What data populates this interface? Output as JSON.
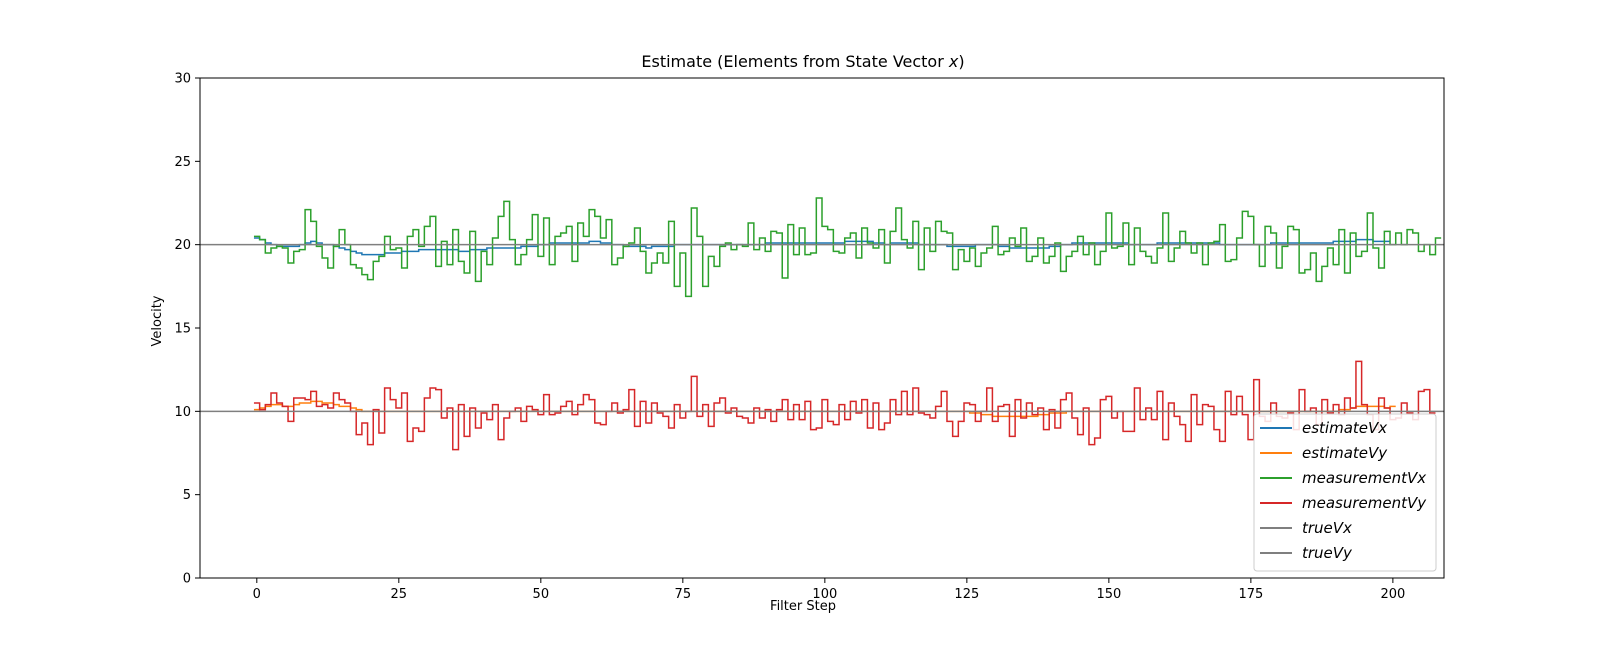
{
  "chart_data": {
    "type": "line",
    "title": "Estimate (Elements from State Vector ",
    "title_var": "x",
    "title_end": ")",
    "xlabel": "Filter Step",
    "ylabel": "Velocity",
    "xlim": [
      -10,
      209
    ],
    "ylim": [
      0,
      30
    ],
    "xticks": [
      0,
      25,
      50,
      75,
      100,
      125,
      150,
      175,
      200
    ],
    "yticks": [
      0,
      5,
      10,
      15,
      20,
      25,
      30
    ],
    "grid": false,
    "legend_position": "lower-right",
    "series": [
      {
        "name": "estimateVx",
        "color": "#1f77b4",
        "style": "step",
        "values": [
          20.4,
          20.3,
          20.1,
          20.0,
          19.9,
          19.9,
          19.9,
          19.9,
          20.0,
          20.1,
          20.2,
          20.1,
          20.0,
          20.0,
          19.9,
          19.8,
          19.7,
          19.6,
          19.5,
          19.4,
          19.4,
          19.4,
          19.4,
          19.5,
          19.5,
          19.5,
          19.6,
          19.6,
          19.6,
          19.7,
          19.7,
          19.7,
          19.7,
          19.7,
          19.7,
          19.7,
          19.6,
          19.6,
          19.7,
          19.7,
          19.7,
          19.8,
          19.8,
          19.8,
          19.8,
          19.8,
          19.8,
          19.9,
          19.9,
          19.9,
          20.0,
          20.0,
          20.1,
          20.1,
          20.1,
          20.1,
          20.1,
          20.1,
          20.1,
          20.2,
          20.2,
          20.1,
          20.1,
          20.0,
          20.0,
          19.9,
          19.9,
          19.9,
          19.9,
          19.8,
          19.9,
          19.9,
          19.9,
          19.9,
          20.0,
          20.0,
          20.0,
          20.0,
          20.0,
          20.0,
          20.0,
          20.0,
          20.0,
          20.0,
          20.0,
          20.0,
          20.0,
          20.0,
          20.0,
          20.0,
          20.1,
          20.1,
          20.1,
          20.1,
          20.1,
          20.1,
          20.1,
          20.1,
          20.1,
          20.1,
          20.1,
          20.1,
          20.1,
          20.1,
          20.2,
          20.2,
          20.2,
          20.2,
          20.2,
          20.1,
          20.1,
          20.0,
          20.1,
          20.1,
          20.1,
          20.1,
          20.1,
          20.0,
          20.0,
          20.0,
          20.0,
          20.0,
          19.9,
          19.9,
          19.9,
          19.9,
          19.9,
          20.0,
          20.0,
          20.0,
          20.0,
          19.9,
          19.9,
          19.8,
          19.8,
          19.8,
          19.8,
          19.8,
          19.8,
          19.8,
          19.9,
          19.9,
          20.0,
          20.0,
          20.1,
          20.1,
          20.1,
          20.1,
          20.1,
          20.1,
          20.1,
          20.1,
          20.1,
          20.1,
          20.0,
          20.0,
          20.0,
          20.0,
          20.0,
          20.1,
          20.1,
          20.1,
          20.1,
          20.1,
          20.1,
          20.1,
          20.1,
          20.1,
          20.1,
          20.1,
          20.0,
          20.0,
          20.0,
          20.0,
          20.0,
          20.0,
          20.0,
          20.0,
          20.0,
          20.1,
          20.1,
          20.1,
          20.1,
          20.1,
          20.1,
          20.1,
          20.1,
          20.1,
          20.1,
          20.1,
          20.2,
          20.2,
          20.2,
          20.2,
          20.3,
          20.3,
          20.3,
          20.2,
          20.2,
          20.2
        ]
      },
      {
        "name": "estimateVy",
        "color": "#ff7f0e",
        "style": "step",
        "values": [
          10.1,
          10.2,
          10.3,
          10.4,
          10.4,
          10.3,
          10.3,
          10.4,
          10.5,
          10.5,
          10.6,
          10.6,
          10.5,
          10.5,
          10.4,
          10.3,
          10.3,
          10.2,
          10.1,
          10.0,
          10.0,
          10.0,
          10.0,
          10.0,
          10.0,
          10.0,
          10.0,
          10.0,
          10.0,
          10.0,
          10.0,
          10.0,
          10.0,
          10.0,
          10.0,
          10.0,
          10.0,
          10.0,
          10.0,
          10.0,
          10.0,
          10.0,
          10.0,
          10.0,
          10.0,
          10.0,
          10.0,
          10.0,
          10.0,
          10.0,
          10.0,
          10.0,
          10.0,
          10.0,
          10.0,
          10.0,
          10.0,
          10.0,
          10.0,
          10.0,
          10.0,
          10.0,
          10.0,
          10.0,
          10.0,
          10.0,
          10.0,
          10.0,
          10.0,
          10.0,
          10.0,
          10.0,
          10.0,
          10.0,
          10.0,
          10.0,
          10.0,
          10.0,
          10.0,
          10.0,
          10.0,
          10.0,
          10.0,
          10.0,
          10.0,
          10.0,
          10.0,
          10.0,
          10.0,
          10.0,
          10.0,
          10.0,
          10.0,
          10.0,
          10.0,
          10.0,
          10.0,
          10.0,
          10.0,
          10.0,
          10.0,
          10.0,
          10.0,
          10.0,
          10.0,
          10.0,
          10.0,
          10.0,
          10.0,
          10.0,
          10.0,
          10.0,
          10.0,
          10.0,
          10.0,
          10.0,
          10.0,
          10.0,
          10.0,
          10.0,
          10.0,
          10.0,
          10.0,
          10.0,
          10.0,
          10.0,
          9.9,
          9.9,
          9.8,
          9.8,
          9.7,
          9.7,
          9.7,
          9.7,
          9.7,
          9.7,
          9.7,
          9.7,
          9.8,
          9.8,
          9.9,
          9.9,
          9.9,
          10.0,
          10.0,
          10.0,
          10.0,
          10.0,
          10.0,
          10.0,
          10.0,
          10.0,
          10.0,
          10.0,
          10.0,
          10.0,
          10.0,
          10.0,
          10.0,
          10.0,
          10.0,
          10.0,
          10.0,
          10.0,
          10.0,
          10.0,
          10.0,
          10.0,
          10.0,
          10.0,
          10.0,
          10.0,
          10.0,
          10.0,
          10.0,
          10.0,
          10.0,
          10.0,
          10.0,
          10.0,
          10.0,
          10.0,
          10.0,
          10.0,
          10.0,
          10.0,
          10.0,
          10.0,
          10.0,
          10.0,
          10.0,
          10.1,
          10.1,
          10.2,
          10.3,
          10.3,
          10.3,
          10.3,
          10.3,
          10.2,
          10.3
        ]
      },
      {
        "name": "measurementVx",
        "color": "#2ca02c",
        "style": "step",
        "values": [
          20.5,
          20.3,
          19.5,
          19.8,
          19.9,
          19.8,
          18.9,
          19.6,
          19.7,
          22.1,
          21.4,
          19.9,
          19.2,
          18.6,
          19.9,
          20.9,
          20.0,
          18.8,
          18.6,
          18.2,
          17.9,
          19.0,
          19.3,
          20.5,
          19.7,
          19.8,
          18.6,
          20.5,
          20.9,
          19.9,
          21.1,
          21.7,
          18.7,
          20.2,
          18.8,
          20.9,
          19.0,
          18.3,
          20.8,
          17.8,
          19.6,
          18.8,
          20.4,
          21.7,
          22.6,
          20.3,
          18.8,
          19.4,
          20.3,
          21.8,
          19.3,
          21.6,
          18.8,
          20.5,
          20.7,
          21.1,
          19.0,
          21.3,
          20.5,
          22.1,
          21.7,
          20.4,
          21.5,
          18.8,
          19.2,
          19.9,
          20.1,
          21.0,
          19.6,
          18.3,
          18.9,
          19.5,
          18.9,
          21.4,
          17.5,
          19.5,
          16.9,
          22.2,
          20.5,
          17.5,
          19.3,
          18.7,
          19.9,
          20.1,
          19.7,
          20.0,
          19.9,
          21.3,
          19.7,
          20.4,
          19.6,
          20.8,
          20.7,
          18.0,
          21.2,
          19.4,
          21.0,
          19.4,
          19.5,
          22.8,
          21.1,
          20.9,
          19.6,
          19.5,
          20.4,
          20.7,
          19.2,
          21.0,
          20.1,
          19.8,
          20.9,
          18.9,
          20.8,
          22.2,
          20.3,
          19.8,
          21.4,
          18.5,
          21.0,
          19.6,
          21.4,
          20.8,
          20.7,
          18.5,
          19.7,
          19.0,
          19.8,
          18.7,
          19.5,
          19.8,
          21.1,
          19.4,
          19.6,
          20.4,
          19.9,
          21.0,
          19.0,
          19.3,
          20.4,
          18.9,
          19.3,
          20.1,
          18.4,
          19.3,
          19.6,
          20.5,
          19.4,
          20.1,
          18.8,
          19.6,
          21.9,
          19.8,
          19.9,
          21.3,
          18.8,
          21.0,
          19.6,
          19.3,
          18.9,
          19.8,
          21.9,
          19.0,
          19.8,
          20.8,
          20.1,
          19.5,
          20.1,
          18.8,
          20.1,
          20.2,
          21.2,
          19.0,
          19.1,
          20.4,
          22.0,
          21.7,
          20.0,
          18.7,
          21.1,
          20.7,
          18.6,
          19.9,
          21.1,
          20.9,
          18.3,
          18.5,
          19.5,
          17.8,
          18.7,
          19.8,
          18.8,
          20.9,
          18.3,
          20.7,
          19.3,
          19.6,
          21.9,
          19.8,
          18.6,
          20.8,
          20.0,
          20.7,
          20.0,
          20.9,
          20.7,
          19.6,
          20.0,
          19.4,
          20.4
        ]
      },
      {
        "name": "measurementVy",
        "color": "#d62728",
        "style": "step",
        "values": [
          10.5,
          10.1,
          10.4,
          11.1,
          10.5,
          10.3,
          9.4,
          10.8,
          10.8,
          10.7,
          11.2,
          10.3,
          10.4,
          10.2,
          11.1,
          10.7,
          10.5,
          10.0,
          8.6,
          9.3,
          8.0,
          10.1,
          8.7,
          11.4,
          10.7,
          10.2,
          11.1,
          8.2,
          9.0,
          8.8,
          10.8,
          11.4,
          11.3,
          9.6,
          10.2,
          7.7,
          10.4,
          8.5,
          10.2,
          9.0,
          9.9,
          9.5,
          10.4,
          8.3,
          9.6,
          10.0,
          10.2,
          9.4,
          10.3,
          10.1,
          9.8,
          11.0,
          9.8,
          9.9,
          10.3,
          10.6,
          9.8,
          10.4,
          11.0,
          10.7,
          9.3,
          9.2,
          10.0,
          10.5,
          9.9,
          10.1,
          11.3,
          9.1,
          10.6,
          9.3,
          10.5,
          9.9,
          9.7,
          9.0,
          10.4,
          9.6,
          10.0,
          12.1,
          9.7,
          10.4,
          9.1,
          10.5,
          10.8,
          9.9,
          10.2,
          9.7,
          9.6,
          9.3,
          10.2,
          9.6,
          10.1,
          9.4,
          10.1,
          10.7,
          9.5,
          10.4,
          9.5,
          10.6,
          8.9,
          9.0,
          10.7,
          9.4,
          9.2,
          10.4,
          9.5,
          10.6,
          9.9,
          10.7,
          9.0,
          10.5,
          8.9,
          9.3,
          10.7,
          9.8,
          11.2,
          9.8,
          11.4,
          9.9,
          9.8,
          9.6,
          10.3,
          11.2,
          9.4,
          8.5,
          9.4,
          10.5,
          10.4,
          9.4,
          10.0,
          11.4,
          9.4,
          10.3,
          10.4,
          8.5,
          10.7,
          9.6,
          10.5,
          9.8,
          10.2,
          8.9,
          10.1,
          9.0,
          10.7,
          11.1,
          9.6,
          8.6,
          10.2,
          8.0,
          8.4,
          10.7,
          10.9,
          9.6,
          10.0,
          8.8,
          8.8,
          11.4,
          9.5,
          10.2,
          9.5,
          11.2,
          8.3,
          10.5,
          9.7,
          9.2,
          8.2,
          11.0,
          9.2,
          10.4,
          10.3,
          8.9,
          8.2,
          11.2,
          9.8,
          10.9,
          9.8,
          8.3,
          11.9,
          9.7,
          9.4,
          10.5,
          9.7,
          9.6,
          9.9,
          8.9,
          11.3,
          10.0,
          10.2,
          9.2,
          10.7,
          9.9,
          10.4,
          9.8,
          10.8,
          10.2,
          13.0,
          10.4,
          9.8,
          8.9,
          10.8,
          10.2,
          9.5,
          9.6,
          10.5,
          9.9,
          9.5,
          11.2,
          11.3,
          9.9
        ]
      },
      {
        "name": "trueVx",
        "color": "#7f7f7f",
        "style": "hline",
        "value": 20
      },
      {
        "name": "trueVy",
        "color": "#7f7f7f",
        "style": "hline",
        "value": 10
      }
    ]
  }
}
